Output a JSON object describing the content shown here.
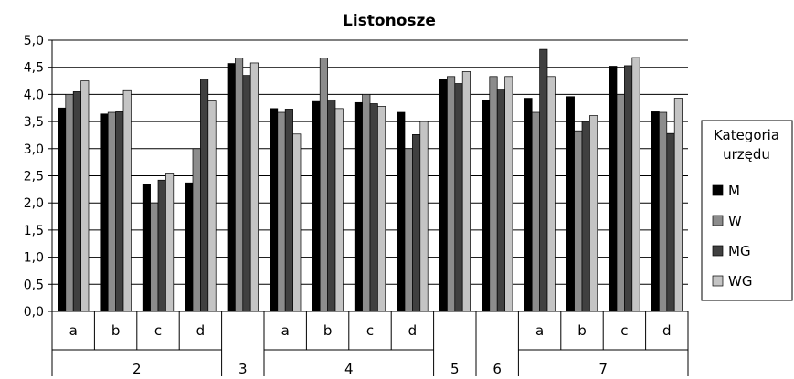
{
  "chart_data": {
    "type": "bar",
    "title": "Listonosze",
    "ylim": [
      0,
      5
    ],
    "yticks": [
      "0,0",
      "0,5",
      "1,0",
      "1,5",
      "2,0",
      "2,5",
      "3,0",
      "3,5",
      "4,0",
      "4,5",
      "5,0"
    ],
    "grid": true,
    "legend": {
      "title_lines": [
        "Kategoria",
        "urzędu"
      ],
      "placement": "right"
    },
    "categories": [
      {
        "sub": "a",
        "group": "2"
      },
      {
        "sub": "b",
        "group": "2"
      },
      {
        "sub": "c",
        "group": "2"
      },
      {
        "sub": "d",
        "group": "2"
      },
      {
        "sub": "",
        "group": "3"
      },
      {
        "sub": "a",
        "group": "4"
      },
      {
        "sub": "b",
        "group": "4"
      },
      {
        "sub": "c",
        "group": "4"
      },
      {
        "sub": "d",
        "group": "4"
      },
      {
        "sub": "",
        "group": "5"
      },
      {
        "sub": "",
        "group": "6"
      },
      {
        "sub": "a",
        "group": "7"
      },
      {
        "sub": "b",
        "group": "7"
      },
      {
        "sub": "c",
        "group": "7"
      },
      {
        "sub": "d",
        "group": "7"
      }
    ],
    "groups": [
      {
        "label": "2",
        "span": 4
      },
      {
        "label": "3",
        "span": 1
      },
      {
        "label": "4",
        "span": 4
      },
      {
        "label": "5",
        "span": 1
      },
      {
        "label": "6",
        "span": 1
      },
      {
        "label": "7",
        "span": 4
      }
    ],
    "series": [
      {
        "name": "M",
        "color": "#000000",
        "values": [
          3.75,
          3.64,
          2.35,
          2.37,
          4.57,
          3.74,
          3.87,
          3.85,
          3.67,
          4.28,
          3.9,
          3.93,
          3.96,
          4.52,
          3.68
        ]
      },
      {
        "name": "W",
        "color": "#8c8c8c",
        "values": [
          4.0,
          3.67,
          2.0,
          3.0,
          4.67,
          3.67,
          4.67,
          4.0,
          3.0,
          4.33,
          4.33,
          3.67,
          3.33,
          4.0,
          3.67
        ]
      },
      {
        "name": "MG",
        "color": "#404040",
        "values": [
          4.05,
          3.68,
          2.42,
          4.28,
          4.35,
          3.73,
          3.9,
          3.83,
          3.26,
          4.2,
          4.1,
          4.83,
          3.5,
          4.53,
          3.28
        ]
      },
      {
        "name": "WG",
        "color": "#c4c4c4",
        "values": [
          4.25,
          4.07,
          2.55,
          3.88,
          4.58,
          3.27,
          3.74,
          3.78,
          3.5,
          4.42,
          4.33,
          4.33,
          3.61,
          4.68,
          3.93
        ]
      }
    ]
  }
}
